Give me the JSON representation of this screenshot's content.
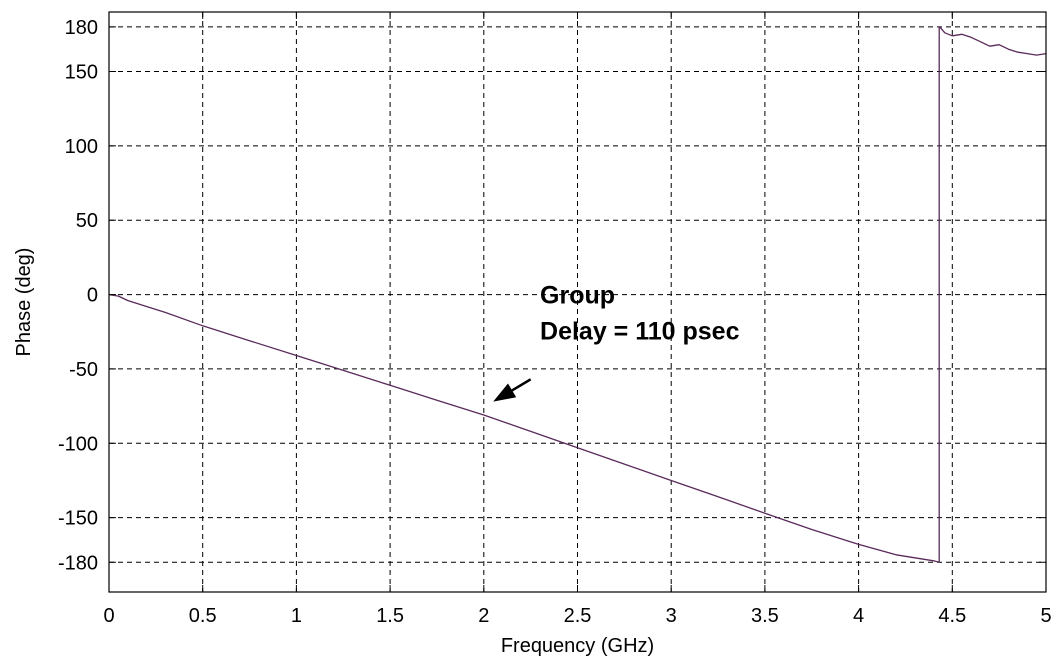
{
  "chart_data": {
    "type": "line",
    "title": "",
    "xlabel": "Frequency (GHz)",
    "ylabel": "Phase (deg)",
    "xlim": [
      0,
      5
    ],
    "ylim": [
      -200,
      190
    ],
    "grid": true,
    "x_ticks": [
      0,
      0.5,
      1,
      1.5,
      2,
      2.5,
      3,
      3.5,
      4,
      4.5,
      5
    ],
    "x_tick_labels": [
      "0",
      "0.5",
      "1",
      "1.5",
      "2",
      "2.5",
      "3",
      "3.5",
      "4",
      "4.5",
      "5"
    ],
    "y_ticks": [
      180,
      150,
      100,
      50,
      0,
      -50,
      -100,
      -150,
      -180
    ],
    "y_tick_labels": [
      "180",
      "150",
      "100",
      "50",
      "0",
      "-50",
      "-100",
      "-150",
      "-180"
    ],
    "colors": {
      "series_line": "#5a2a5a",
      "grid": "#000000",
      "axes": "#000000"
    },
    "series": [
      {
        "x": [
          0.0,
          0.05,
          0.1,
          0.2,
          0.3,
          0.5,
          0.75,
          1.0,
          1.25,
          1.5,
          1.75,
          2.0,
          2.25,
          2.5,
          2.75,
          3.0,
          3.25,
          3.5,
          3.75,
          4.0,
          4.2,
          4.3,
          4.4,
          4.43,
          4.43,
          4.44,
          4.46,
          4.5,
          4.55,
          4.6,
          4.65,
          4.7,
          4.75,
          4.8,
          4.85,
          4.9,
          4.95,
          5.0
        ],
        "y": [
          0,
          -1,
          -4,
          -8,
          -12,
          -21,
          -31,
          -41,
          -51,
          -61,
          -71,
          -81,
          -92,
          -103,
          -114,
          -125,
          -136,
          -147,
          -158,
          -168,
          -175,
          -177,
          -179,
          -180,
          180,
          179,
          176,
          174,
          175,
          173,
          170,
          167,
          168,
          165,
          163,
          162,
          161,
          162
        ]
      }
    ],
    "annotations": [
      {
        "lines": [
          "Group",
          "Delay = 110 psec"
        ],
        "arrow_tail": [
          2.25,
          -57
        ],
        "arrow_head": [
          2.05,
          -72
        ]
      }
    ]
  }
}
